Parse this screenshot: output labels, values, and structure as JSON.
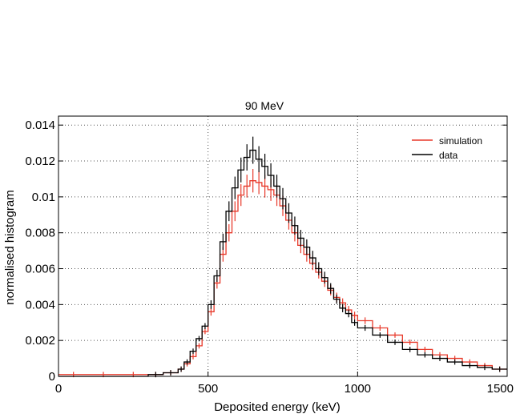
{
  "chart_data": {
    "type": "line",
    "style": "step-histogram-with-errorbars",
    "title": "90 MeV",
    "xlabel": "Deposited energy (keV)",
    "ylabel": "normalised histogram",
    "xlim": [
      0,
      1500
    ],
    "ylim": [
      0,
      0.0145
    ],
    "x_ticks": [
      0,
      500,
      1000,
      1500
    ],
    "x_tick_labels": [
      "0",
      "500",
      "1000",
      "1500"
    ],
    "y_ticks": [
      0,
      0.002,
      0.004,
      0.006,
      0.008,
      0.01,
      0.012,
      0.014
    ],
    "y_tick_labels": [
      "0",
      "0.002",
      "0.004",
      "0.006",
      "0.008",
      "0.01",
      "0.012",
      "0.014"
    ],
    "grid": "dotted",
    "legend_position": "top-right",
    "x": [
      0,
      100,
      200,
      300,
      350,
      400,
      420,
      440,
      460,
      480,
      500,
      520,
      540,
      560,
      580,
      600,
      620,
      640,
      660,
      680,
      700,
      720,
      740,
      760,
      780,
      800,
      820,
      840,
      860,
      880,
      900,
      920,
      940,
      960,
      980,
      1000,
      1050,
      1100,
      1150,
      1200,
      1250,
      1300,
      1350,
      1400,
      1450,
      1500
    ],
    "series": [
      {
        "name": "simulation",
        "color": "#e8392a",
        "values": [
          0.0001,
          0.0001,
          0.0001,
          0.0001,
          0.0002,
          0.0004,
          0.0007,
          0.0011,
          0.0017,
          0.0025,
          0.0036,
          0.0052,
          0.0068,
          0.008,
          0.0092,
          0.0101,
          0.0106,
          0.0109,
          0.0108,
          0.0106,
          0.0104,
          0.0101,
          0.0095,
          0.0087,
          0.008,
          0.0073,
          0.0068,
          0.0063,
          0.0058,
          0.0053,
          0.0048,
          0.0044,
          0.0041,
          0.0037,
          0.0034,
          0.0031,
          0.0027,
          0.0023,
          0.0019,
          0.0015,
          0.0012,
          0.001,
          0.0008,
          0.0006,
          0.0004,
          0.0003
        ]
      },
      {
        "name": "data",
        "color": "#000000",
        "values": [
          0.0,
          0.0,
          0.0,
          0.0001,
          0.0002,
          0.0004,
          0.0008,
          0.0014,
          0.0021,
          0.0028,
          0.004,
          0.0056,
          0.0075,
          0.0092,
          0.0105,
          0.0115,
          0.0122,
          0.0126,
          0.0121,
          0.0117,
          0.0112,
          0.0106,
          0.0099,
          0.0091,
          0.0084,
          0.0077,
          0.0072,
          0.0066,
          0.006,
          0.0055,
          0.0049,
          0.0043,
          0.0038,
          0.0035,
          0.003,
          0.0027,
          0.0023,
          0.0019,
          0.0015,
          0.0012,
          0.001,
          0.0008,
          0.0006,
          0.0005,
          0.0004,
          0.0003
        ]
      }
    ]
  }
}
